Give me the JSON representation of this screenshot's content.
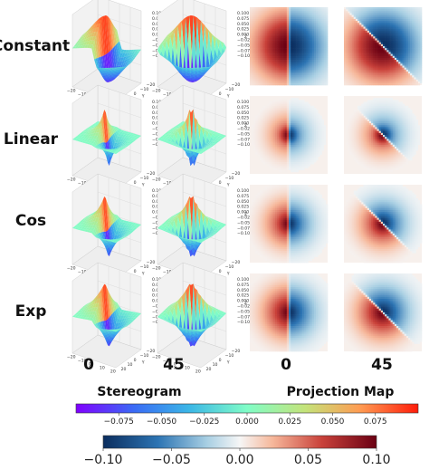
{
  "chart_data": {
    "type": "heatmap",
    "row_labels": [
      "Constant",
      "Linear",
      "Cos",
      "Exp"
    ],
    "column_labels": [
      "0",
      "45",
      "0",
      "45"
    ],
    "section_labels": {
      "stereogram": "Stereogram",
      "projection": "Projection Map"
    },
    "stereogram_colorbar": {
      "colormap": "rainbow",
      "range": [
        -0.1,
        0.1
      ],
      "ticks": [
        "−0.075",
        "−0.050",
        "−0.025",
        "0.000",
        "0.025",
        "0.050",
        "0.075"
      ]
    },
    "projection_colorbar": {
      "colormap": "RdBu_r",
      "range": [
        -0.1,
        0.1
      ],
      "ticks": [
        "−0.10",
        "−0.05",
        "0.00",
        "0.05",
        "0.10"
      ]
    },
    "surface_z_ticks": [
      "0.100",
      "0.075",
      "0.050",
      "0.025",
      "0.000",
      "−0.025",
      "−0.050",
      "−0.075",
      "−0.100"
    ],
    "surface_xy_ticks": [
      "−20",
      "−10",
      "0",
      "10",
      "20"
    ],
    "surface_axis_labels": {
      "x": "X",
      "y": "Y",
      "z": "Z"
    },
    "projection_angles_deg": [
      0,
      45
    ],
    "row_kernels": [
      {
        "name": "Constant",
        "spread": 0.62,
        "sharp": 0.0
      },
      {
        "name": "Linear",
        "spread": 0.4,
        "sharp": 0.5
      },
      {
        "name": "Cos",
        "spread": 0.44,
        "sharp": 0.35
      },
      {
        "name": "Exp",
        "spread": 0.48,
        "sharp": 0.25
      }
    ]
  }
}
